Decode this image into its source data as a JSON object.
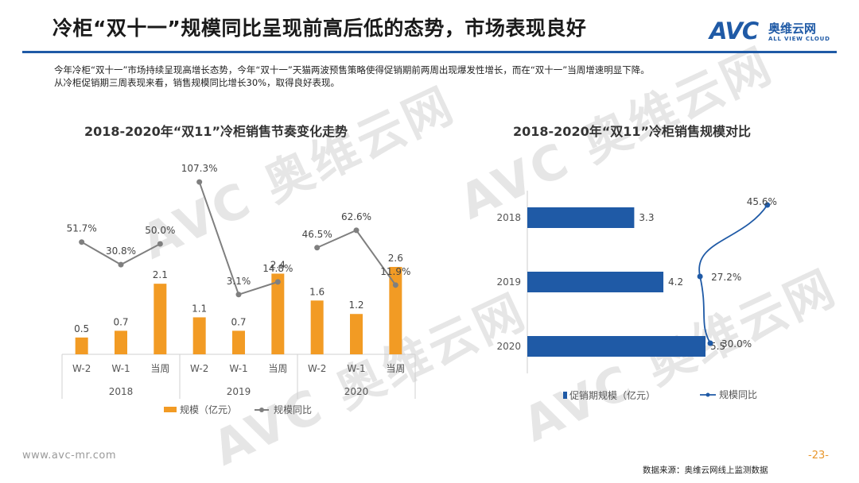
{
  "header": {
    "title": "冷柜“双十一”规模同比呈现前高后低的态势，市场表现良好",
    "logo_text": "AVC",
    "logo_cn": "奥维云网",
    "logo_en": "ALL VIEW CLOUD"
  },
  "description": {
    "line1": "今年冷柜“双十一”市场持续呈现高增长态势，今年“双十一”天猫两波预售策略使得促销期前两周出现爆发性增长，而在“双十一”当周增速明显下降。",
    "line2": "从冷柜促销期三周表现来看，销售规模同比增长30%，取得良好表现。"
  },
  "watermark": "AVC 奥维云网",
  "footer": {
    "url": "www.avc-mr.com",
    "page": "-23-",
    "source": "数据来源：奥维云网线上监测数据"
  },
  "colors": {
    "brand_blue": "#1f5aa6",
    "bar_orange": "#f29b24",
    "line_gray": "#7f7f7f",
    "bar_blue": "#1f5aa6"
  },
  "chart_data": [
    {
      "type": "bar+line",
      "title": "2018-2020年“双11”冷柜销售节奏变化走势",
      "categories": [
        "W-2",
        "W-1",
        "当周",
        "W-2",
        "W-1",
        "当周",
        "W-2",
        "W-1",
        "当周"
      ],
      "groups": [
        "2018",
        "2019",
        "2020"
      ],
      "series": [
        {
          "name": "规模（亿元）",
          "kind": "bar",
          "values": [
            0.5,
            0.7,
            2.1,
            1.1,
            0.7,
            2.4,
            1.6,
            1.2,
            2.6
          ],
          "labels": [
            "0.5",
            "0.7",
            "2.1",
            "1.1",
            "0.7",
            "2.4",
            "1.6",
            "1.2",
            "2.6"
          ]
        },
        {
          "name": "规模同比",
          "kind": "line",
          "values": [
            51.7,
            30.8,
            50.0,
            107.3,
            3.1,
            14.8,
            46.5,
            62.6,
            11.9
          ],
          "labels": [
            "51.7%",
            "30.8%",
            "50.0%",
            "107.3%",
            "3.1%",
            "14.8%",
            "46.5%",
            "62.6%",
            "11.9%"
          ]
        }
      ],
      "legend": [
        "规模（亿元）",
        "规模同比"
      ],
      "legend_position": "bottom"
    },
    {
      "type": "barh+line",
      "title": "2018-2020年“双11”冷柜销售规模对比",
      "categories": [
        "2018",
        "2019",
        "2020"
      ],
      "series": [
        {
          "name": "促销期规模（亿元）",
          "kind": "bar",
          "values": [
            3.3,
            4.2,
            5.5
          ],
          "labels": [
            "3.3",
            "4.2",
            "5.5"
          ]
        },
        {
          "name": "规模同比",
          "kind": "line",
          "values": [
            45.6,
            27.2,
            30.0
          ],
          "labels": [
            "45.6%",
            "27.2%",
            "30.0%"
          ]
        }
      ],
      "legend": [
        "促销期规模（亿元）",
        "规模同比"
      ],
      "legend_position": "bottom"
    }
  ]
}
